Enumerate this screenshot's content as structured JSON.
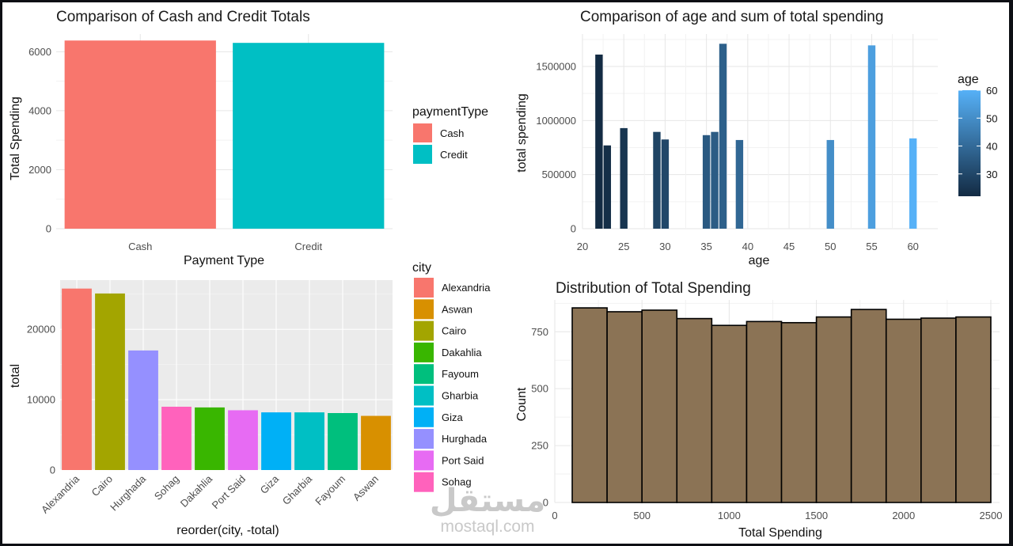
{
  "chart_data": [
    {
      "id": "payment",
      "type": "bar",
      "title": "Comparison of Cash and Credit Totals",
      "xlabel": "Payment Type",
      "ylabel": "Total Spending",
      "categories": [
        "Cash",
        "Credit"
      ],
      "values": [
        6380,
        6300
      ],
      "ylim": [
        0,
        6600
      ],
      "yticks": [
        0,
        2000,
        4000,
        6000
      ],
      "colors": [
        "#F8766D",
        "#00BFC4"
      ],
      "legend": {
        "title": "paymentType",
        "labels": [
          "Cash",
          "Credit"
        ],
        "placement": "right"
      },
      "grid": true
    },
    {
      "id": "age",
      "type": "bar",
      "title": "Comparison of age and sum of total spending",
      "xlabel": "age",
      "ylabel": "total spending",
      "x": [
        22,
        23,
        25,
        29,
        30,
        35,
        36,
        37,
        39,
        50,
        55,
        60
      ],
      "values": [
        1610000,
        770000,
        930000,
        895000,
        825000,
        865000,
        895000,
        1710000,
        820000,
        820000,
        1695000,
        835000
      ],
      "xlim": [
        20,
        63
      ],
      "xticks": [
        20,
        25,
        30,
        35,
        40,
        45,
        50,
        55,
        60
      ],
      "ylim": [
        0,
        1800000
      ],
      "yticks": [
        0,
        500000,
        1000000,
        1500000
      ],
      "colorbar": {
        "title": "age",
        "ticks": [
          30,
          40,
          50,
          60
        ],
        "range": [
          22,
          60
        ],
        "low": "#132B43",
        "high": "#56B1F7",
        "placement": "right"
      },
      "grid": true
    },
    {
      "id": "city",
      "type": "bar",
      "title": "",
      "xlabel": "reorder(city, -total)",
      "ylabel": "total",
      "categories": [
        "Alexandria",
        "Cairo",
        "Hurghada",
        "Sohag",
        "Dakahlia",
        "Port Said",
        "Giza",
        "Gharbia",
        "Fayoum",
        "Aswan"
      ],
      "values": [
        25800,
        25100,
        17000,
        9000,
        8900,
        8500,
        8200,
        8200,
        8100,
        7700
      ],
      "colors": [
        "#F8766D",
        "#A3A500",
        "#9590FF",
        "#FF62BC",
        "#39B600",
        "#E76BF3",
        "#00B0F6",
        "#00BFC4",
        "#00BF7D",
        "#D89000"
      ],
      "ylim": [
        0,
        27000
      ],
      "yticks": [
        0,
        10000,
        20000
      ],
      "legend": {
        "title": "city",
        "labels": [
          "Alexandria",
          "Aswan",
          "Cairo",
          "Dakahlia",
          "Fayoum",
          "Gharbia",
          "Giza",
          "Hurghada",
          "Port Said",
          "Sohag"
        ],
        "colors": [
          "#F8766D",
          "#D89000",
          "#A3A500",
          "#39B600",
          "#00BF7D",
          "#00BFC4",
          "#00B0F6",
          "#9590FF",
          "#E76BF3",
          "#FF62BC"
        ],
        "placement": "right"
      },
      "grid": true
    },
    {
      "id": "hist",
      "type": "bar",
      "title": "Distribution of Total Spending",
      "xlabel": "Total Spending",
      "ylabel": "Count",
      "bins": [
        {
          "start": 100,
          "end": 300,
          "count": 855
        },
        {
          "start": 300,
          "end": 500,
          "count": 838
        },
        {
          "start": 500,
          "end": 700,
          "count": 845
        },
        {
          "start": 700,
          "end": 900,
          "count": 808
        },
        {
          "start": 900,
          "end": 1100,
          "count": 778
        },
        {
          "start": 1100,
          "end": 1300,
          "count": 795
        },
        {
          "start": 1300,
          "end": 1500,
          "count": 790
        },
        {
          "start": 1500,
          "end": 1700,
          "count": 815
        },
        {
          "start": 1700,
          "end": 1900,
          "count": 848
        },
        {
          "start": 1900,
          "end": 2100,
          "count": 805
        },
        {
          "start": 2100,
          "end": 2300,
          "count": 810
        },
        {
          "start": 2300,
          "end": 2500,
          "count": 815
        }
      ],
      "xlim": [
        0,
        2550
      ],
      "xticks": [
        0,
        500,
        1000,
        1500,
        2000,
        2500
      ],
      "ylim": [
        0,
        890
      ],
      "yticks": [
        0,
        250,
        500,
        750
      ],
      "fill": "#8B7355",
      "outline": "#000000",
      "grid": true
    }
  ],
  "watermark": {
    "arabic": "مستقل",
    "latin": "mostaql.com"
  }
}
